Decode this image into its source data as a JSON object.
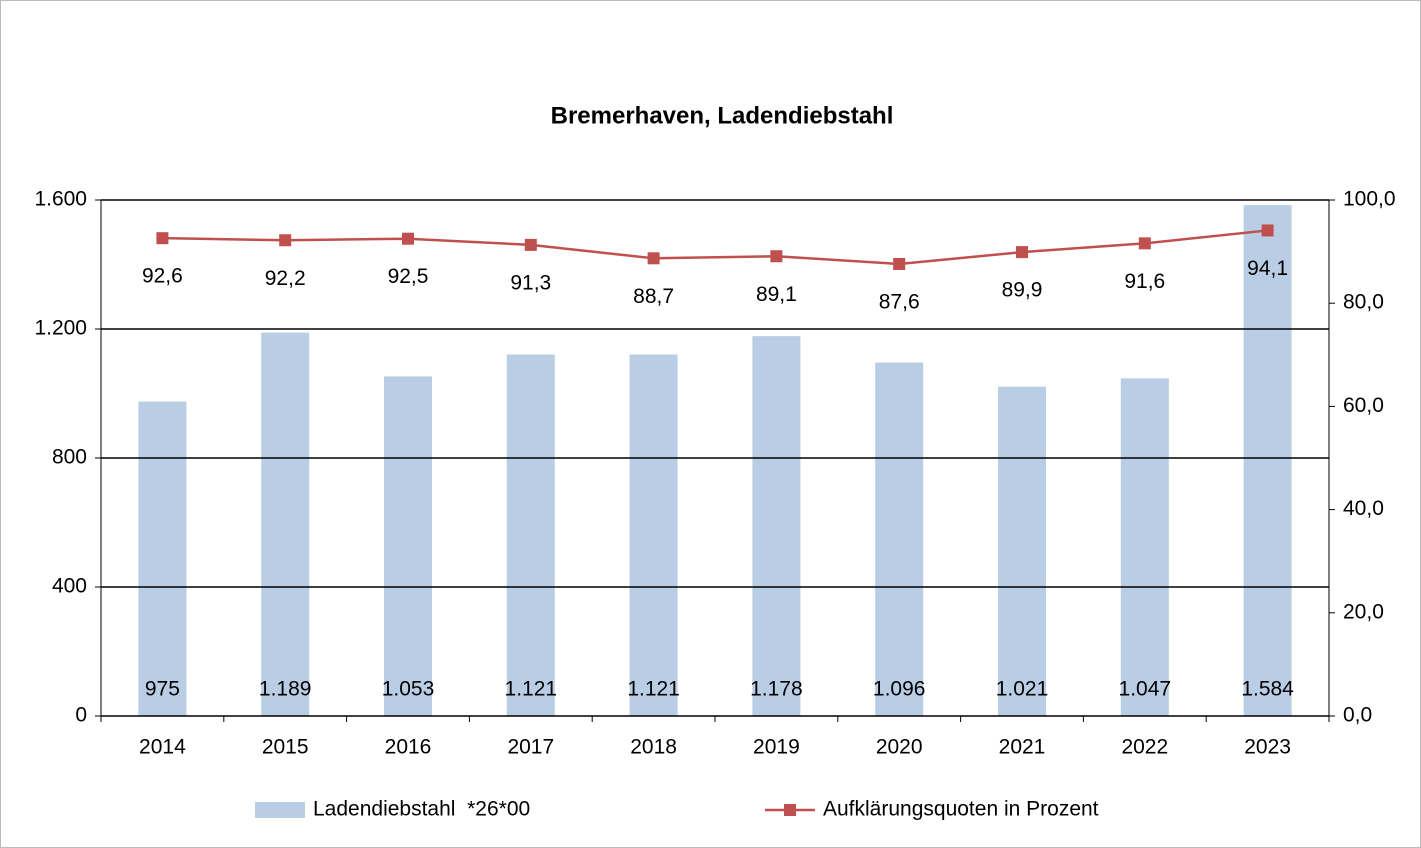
{
  "chart_data": {
    "type": "bar+line",
    "title": "Bremerhaven, Ladendiebstahl",
    "categories": [
      "2014",
      "2015",
      "2016",
      "2017",
      "2018",
      "2019",
      "2020",
      "2021",
      "2022",
      "2023"
    ],
    "series": [
      {
        "name": "Ladendiebstahl  *26*00",
        "type": "bar",
        "color": "#b9cde5",
        "values": [
          975,
          1189,
          1053,
          1121,
          1121,
          1178,
          1096,
          1021,
          1047,
          1584
        ],
        "value_labels": [
          "975",
          "1.189",
          "1.053",
          "1.121",
          "1.121",
          "1.178",
          "1.096",
          "1.021",
          "1.047",
          "1.584"
        ]
      },
      {
        "name": "Aufklärungsquoten in Prozent",
        "type": "line",
        "axis": "y2",
        "color": "#c0504d",
        "values": [
          92.6,
          92.2,
          92.5,
          91.3,
          88.7,
          89.1,
          87.6,
          89.9,
          91.6,
          94.1
        ],
        "value_labels": [
          "92,6",
          "92,2",
          "92,5",
          "91,3",
          "88,7",
          "89,1",
          "87,6",
          "89,9",
          "91,6",
          "94,1"
        ]
      }
    ],
    "ylim": [
      0,
      1600
    ],
    "yticks": [
      0,
      {
        "value": 400,
        "label": "400"
      },
      {
        "value": 800,
        "label": "800"
      },
      {
        "value": 1200,
        "label": "1.200"
      },
      {
        "value": 1600,
        "label": "1.600"
      }
    ],
    "y2lim": [
      0,
      100
    ],
    "y2ticks": [
      {
        "value": 0,
        "label": "0,0"
      },
      {
        "value": 20,
        "label": "20,0"
      },
      {
        "value": 40,
        "label": "40,0"
      },
      {
        "value": 60,
        "label": "60,0"
      },
      {
        "value": 80,
        "label": "80,0"
      },
      {
        "value": 100,
        "label": "100,0"
      }
    ],
    "grid": true,
    "legend": "bottom"
  }
}
